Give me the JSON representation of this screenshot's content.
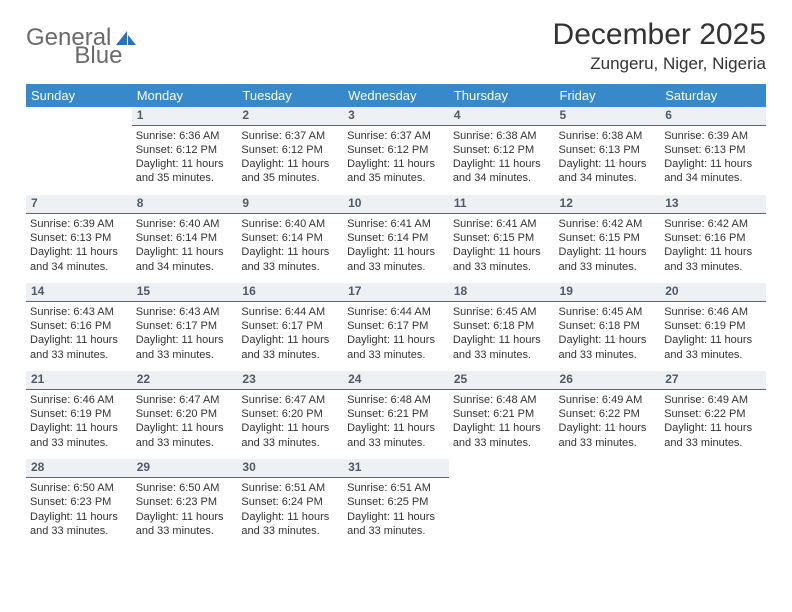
{
  "logo": {
    "part1": "General",
    "part2": "Blue"
  },
  "title": "December 2025",
  "location": "Zungeru, Niger, Nigeria",
  "dayHeaders": [
    "Sunday",
    "Monday",
    "Tuesday",
    "Wednesday",
    "Thursday",
    "Friday",
    "Saturday"
  ],
  "colors": {
    "headerBg": "#3789c9",
    "dayNumBg": "#eef1f4",
    "dayNumBorder": "#3a6a99",
    "logoAccent": "#2971b8"
  },
  "weeks": [
    {
      "nums": [
        "",
        "1",
        "2",
        "3",
        "4",
        "5",
        "6"
      ],
      "cells": [
        {
          "sunrise": "",
          "sunset": "",
          "daylight": ""
        },
        {
          "sunrise": "Sunrise: 6:36 AM",
          "sunset": "Sunset: 6:12 PM",
          "daylight": "Daylight: 11 hours and 35 minutes."
        },
        {
          "sunrise": "Sunrise: 6:37 AM",
          "sunset": "Sunset: 6:12 PM",
          "daylight": "Daylight: 11 hours and 35 minutes."
        },
        {
          "sunrise": "Sunrise: 6:37 AM",
          "sunset": "Sunset: 6:12 PM",
          "daylight": "Daylight: 11 hours and 35 minutes."
        },
        {
          "sunrise": "Sunrise: 6:38 AM",
          "sunset": "Sunset: 6:12 PM",
          "daylight": "Daylight: 11 hours and 34 minutes."
        },
        {
          "sunrise": "Sunrise: 6:38 AM",
          "sunset": "Sunset: 6:13 PM",
          "daylight": "Daylight: 11 hours and 34 minutes."
        },
        {
          "sunrise": "Sunrise: 6:39 AM",
          "sunset": "Sunset: 6:13 PM",
          "daylight": "Daylight: 11 hours and 34 minutes."
        }
      ]
    },
    {
      "nums": [
        "7",
        "8",
        "9",
        "10",
        "11",
        "12",
        "13"
      ],
      "cells": [
        {
          "sunrise": "Sunrise: 6:39 AM",
          "sunset": "Sunset: 6:13 PM",
          "daylight": "Daylight: 11 hours and 34 minutes."
        },
        {
          "sunrise": "Sunrise: 6:40 AM",
          "sunset": "Sunset: 6:14 PM",
          "daylight": "Daylight: 11 hours and 34 minutes."
        },
        {
          "sunrise": "Sunrise: 6:40 AM",
          "sunset": "Sunset: 6:14 PM",
          "daylight": "Daylight: 11 hours and 33 minutes."
        },
        {
          "sunrise": "Sunrise: 6:41 AM",
          "sunset": "Sunset: 6:14 PM",
          "daylight": "Daylight: 11 hours and 33 minutes."
        },
        {
          "sunrise": "Sunrise: 6:41 AM",
          "sunset": "Sunset: 6:15 PM",
          "daylight": "Daylight: 11 hours and 33 minutes."
        },
        {
          "sunrise": "Sunrise: 6:42 AM",
          "sunset": "Sunset: 6:15 PM",
          "daylight": "Daylight: 11 hours and 33 minutes."
        },
        {
          "sunrise": "Sunrise: 6:42 AM",
          "sunset": "Sunset: 6:16 PM",
          "daylight": "Daylight: 11 hours and 33 minutes."
        }
      ]
    },
    {
      "nums": [
        "14",
        "15",
        "16",
        "17",
        "18",
        "19",
        "20"
      ],
      "cells": [
        {
          "sunrise": "Sunrise: 6:43 AM",
          "sunset": "Sunset: 6:16 PM",
          "daylight": "Daylight: 11 hours and 33 minutes."
        },
        {
          "sunrise": "Sunrise: 6:43 AM",
          "sunset": "Sunset: 6:17 PM",
          "daylight": "Daylight: 11 hours and 33 minutes."
        },
        {
          "sunrise": "Sunrise: 6:44 AM",
          "sunset": "Sunset: 6:17 PM",
          "daylight": "Daylight: 11 hours and 33 minutes."
        },
        {
          "sunrise": "Sunrise: 6:44 AM",
          "sunset": "Sunset: 6:17 PM",
          "daylight": "Daylight: 11 hours and 33 minutes."
        },
        {
          "sunrise": "Sunrise: 6:45 AM",
          "sunset": "Sunset: 6:18 PM",
          "daylight": "Daylight: 11 hours and 33 minutes."
        },
        {
          "sunrise": "Sunrise: 6:45 AM",
          "sunset": "Sunset: 6:18 PM",
          "daylight": "Daylight: 11 hours and 33 minutes."
        },
        {
          "sunrise": "Sunrise: 6:46 AM",
          "sunset": "Sunset: 6:19 PM",
          "daylight": "Daylight: 11 hours and 33 minutes."
        }
      ]
    },
    {
      "nums": [
        "21",
        "22",
        "23",
        "24",
        "25",
        "26",
        "27"
      ],
      "cells": [
        {
          "sunrise": "Sunrise: 6:46 AM",
          "sunset": "Sunset: 6:19 PM",
          "daylight": "Daylight: 11 hours and 33 minutes."
        },
        {
          "sunrise": "Sunrise: 6:47 AM",
          "sunset": "Sunset: 6:20 PM",
          "daylight": "Daylight: 11 hours and 33 minutes."
        },
        {
          "sunrise": "Sunrise: 6:47 AM",
          "sunset": "Sunset: 6:20 PM",
          "daylight": "Daylight: 11 hours and 33 minutes."
        },
        {
          "sunrise": "Sunrise: 6:48 AM",
          "sunset": "Sunset: 6:21 PM",
          "daylight": "Daylight: 11 hours and 33 minutes."
        },
        {
          "sunrise": "Sunrise: 6:48 AM",
          "sunset": "Sunset: 6:21 PM",
          "daylight": "Daylight: 11 hours and 33 minutes."
        },
        {
          "sunrise": "Sunrise: 6:49 AM",
          "sunset": "Sunset: 6:22 PM",
          "daylight": "Daylight: 11 hours and 33 minutes."
        },
        {
          "sunrise": "Sunrise: 6:49 AM",
          "sunset": "Sunset: 6:22 PM",
          "daylight": "Daylight: 11 hours and 33 minutes."
        }
      ]
    },
    {
      "nums": [
        "28",
        "29",
        "30",
        "31",
        "",
        "",
        ""
      ],
      "cells": [
        {
          "sunrise": "Sunrise: 6:50 AM",
          "sunset": "Sunset: 6:23 PM",
          "daylight": "Daylight: 11 hours and 33 minutes."
        },
        {
          "sunrise": "Sunrise: 6:50 AM",
          "sunset": "Sunset: 6:23 PM",
          "daylight": "Daylight: 11 hours and 33 minutes."
        },
        {
          "sunrise": "Sunrise: 6:51 AM",
          "sunset": "Sunset: 6:24 PM",
          "daylight": "Daylight: 11 hours and 33 minutes."
        },
        {
          "sunrise": "Sunrise: 6:51 AM",
          "sunset": "Sunset: 6:25 PM",
          "daylight": "Daylight: 11 hours and 33 minutes."
        },
        {
          "sunrise": "",
          "sunset": "",
          "daylight": ""
        },
        {
          "sunrise": "",
          "sunset": "",
          "daylight": ""
        },
        {
          "sunrise": "",
          "sunset": "",
          "daylight": ""
        }
      ]
    }
  ]
}
